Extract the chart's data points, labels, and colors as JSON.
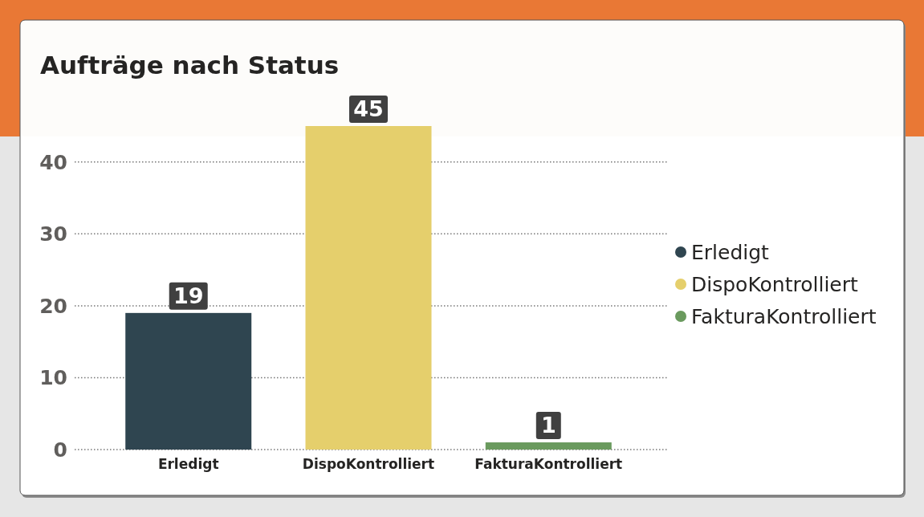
{
  "chart_data": {
    "type": "bar",
    "title": "Aufträge nach Status",
    "categories": [
      "Erledigt",
      "DispoKontrolliert",
      "FakturaKontrolliert"
    ],
    "series": [
      {
        "name": "Erledigt",
        "color": "#2f4550",
        "values": [
          19,
          null,
          null
        ]
      },
      {
        "name": "DispoKontrolliert",
        "color": "#e5cf6c",
        "values": [
          null,
          45,
          null
        ]
      },
      {
        "name": "FakturaKontrolliert",
        "color": "#6a9a5e",
        "values": [
          null,
          null,
          1
        ]
      }
    ],
    "stacked": true,
    "ylim": [
      0,
      45
    ],
    "yticks": [
      0,
      10,
      20,
      30,
      40
    ],
    "grid": "y",
    "legend": "right",
    "data_labels": true
  }
}
